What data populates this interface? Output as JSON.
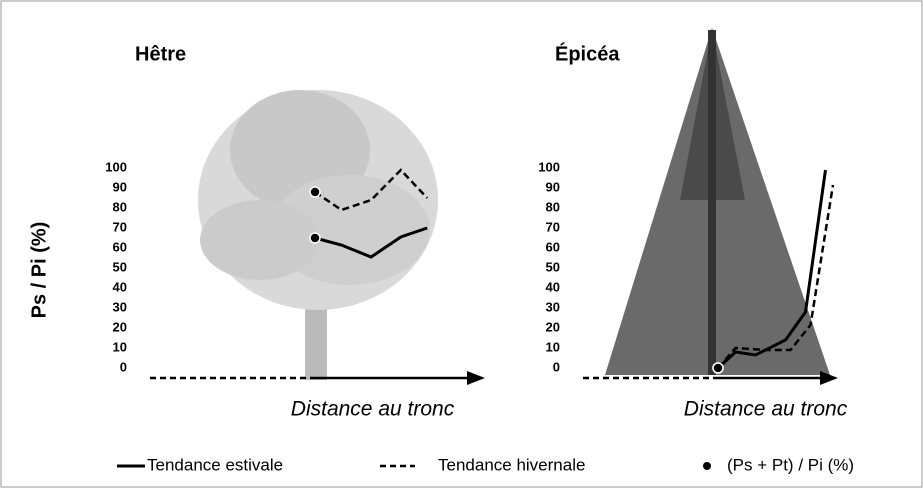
{
  "chart_data": [
    {
      "type": "line",
      "title": "Hêtre",
      "ylabel": "Ps / Pi (%)",
      "xlabel": "Distance au tronc",
      "ylim": [
        0,
        100
      ],
      "yticks": [
        0,
        10,
        20,
        30,
        40,
        50,
        60,
        70,
        80,
        90,
        100
      ],
      "xlim": [
        0,
        100
      ],
      "marker_label": "(Ps + Pt) / Pi (%)",
      "series": [
        {
          "name": "Tendance estivale",
          "color": "#000000",
          "dashed": false,
          "x": [
            50,
            58,
            67,
            76,
            84
          ],
          "values": [
            65,
            61.5,
            55.5,
            65.5,
            70
          ]
        },
        {
          "name": "Tendance hivernale",
          "color": "#000000",
          "dashed": true,
          "x": [
            50,
            58,
            67,
            76,
            84
          ],
          "values": [
            88,
            79,
            84,
            99,
            85
          ]
        }
      ]
    },
    {
      "type": "line",
      "title": "Épicéa",
      "xlabel": "Distance au tronc",
      "ylim": [
        0,
        100
      ],
      "yticks": [
        0,
        10,
        20,
        30,
        40,
        50,
        60,
        70,
        80,
        90,
        100
      ],
      "xlim": [
        0,
        100
      ],
      "series": [
        {
          "color": "#000000",
          "dashed": false,
          "x": [
            54,
            61,
            69,
            81,
            89,
            97
          ],
          "values": [
            0,
            8,
            6.5,
            14,
            28,
            99
          ]
        },
        {
          "color": "#000000",
          "dashed": true,
          "x": [
            54,
            61,
            73,
            83,
            91,
            100
          ],
          "values": [
            0,
            10,
            9,
            9,
            21.5,
            91.5
          ]
        }
      ]
    }
  ]
}
